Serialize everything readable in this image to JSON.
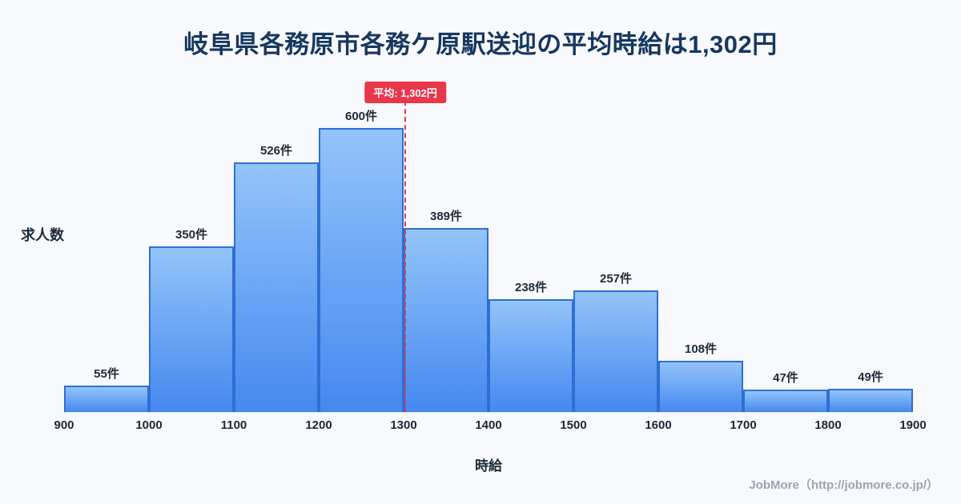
{
  "title": "岐阜県各務原市各務ケ原駅送迎の平均時給は1,302円",
  "footer": "JobMore（http://jobmore.co.jp/）",
  "average": {
    "label": "平均: 1,302円",
    "value": 1302
  },
  "chart_data": {
    "type": "bar",
    "title": "岐阜県各務原市各務ケ原駅送迎の平均時給は1,302円",
    "xlabel": "時給",
    "ylabel": "求人数",
    "x_range": [
      900,
      1900
    ],
    "bin_width": 100,
    "x_ticks": [
      "900",
      "1000",
      "1100",
      "1200",
      "1300",
      "1400",
      "1500",
      "1600",
      "1700",
      "1800",
      "1900"
    ],
    "categories": [
      "900-1000",
      "1000-1100",
      "1100-1200",
      "1200-1300",
      "1300-1400",
      "1400-1500",
      "1500-1600",
      "1600-1700",
      "1700-1800",
      "1800-1900"
    ],
    "values": [
      55,
      350,
      526,
      600,
      389,
      238,
      257,
      108,
      47,
      49
    ],
    "bar_labels": [
      "55件",
      "350件",
      "526件",
      "600件",
      "389件",
      "238件",
      "257件",
      "108件",
      "47件",
      "49件"
    ],
    "ylim": [
      0,
      650
    ],
    "grid": false,
    "legend": false,
    "average_line": {
      "value": 1302,
      "label": "平均: 1,302円",
      "color": "#e8364a"
    },
    "colors": {
      "bar_top": "#93c4fa",
      "bar_bottom": "#4588ef",
      "bar_border": "#2e6fd4",
      "average_red": "#e8364a",
      "title": "#16375f",
      "background": "#f7f9fc"
    }
  }
}
